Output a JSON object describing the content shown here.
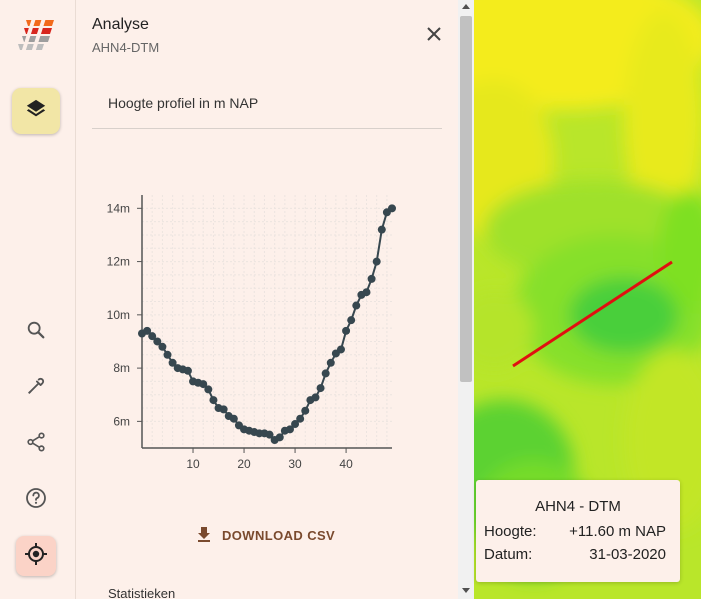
{
  "panel": {
    "title": "Analyse",
    "subtitle": "AHN4-DTM",
    "section_title": "Hoogte profiel in m NAP",
    "download_label": "DOWNLOAD CSV",
    "stats_label": "Statistieken"
  },
  "rail": {
    "icons": [
      "layers-icon",
      "search-icon",
      "measure-icon",
      "share-icon",
      "help-icon",
      "locate-icon"
    ]
  },
  "info_card": {
    "title": "AHN4 - DTM",
    "height_label": "Hoogte:",
    "height_value": "+11.60 m NAP",
    "date_label": "Datum:",
    "date_value": "31-03-2020"
  },
  "colors": {
    "accent": "#f2e6a6",
    "locate_bg": "#fbd3c7",
    "chart_line": "#37474f",
    "profile_line": "#e01010",
    "map_green": "#7ee024",
    "map_yellow": "#f6f01a"
  },
  "chart_data": {
    "type": "line",
    "title": "",
    "xlabel": "",
    "ylabel": "",
    "xlim": [
      0,
      49
    ],
    "ylim": [
      5,
      14.5
    ],
    "x_ticks": [
      "10",
      "20",
      "30",
      "40"
    ],
    "y_ticks": [
      "14m",
      "12m",
      "10m",
      "8m",
      "6m"
    ],
    "x_tick_values": [
      10,
      20,
      30,
      40
    ],
    "y_tick_values": [
      14,
      12,
      10,
      8,
      6
    ],
    "x": [
      0,
      1,
      2,
      3,
      4,
      5,
      6,
      7,
      8,
      9,
      10,
      11,
      12,
      13,
      14,
      15,
      16,
      17,
      18,
      19,
      20,
      21,
      22,
      23,
      24,
      25,
      26,
      27,
      28,
      29,
      30,
      31,
      32,
      33,
      34,
      35,
      36,
      37,
      38,
      39,
      40,
      41,
      42,
      43,
      44,
      45,
      46,
      47,
      48,
      49
    ],
    "values": [
      9.3,
      9.4,
      9.2,
      9.0,
      8.8,
      8.5,
      8.2,
      8.0,
      7.95,
      7.9,
      7.5,
      7.45,
      7.4,
      7.2,
      6.8,
      6.5,
      6.45,
      6.2,
      6.1,
      5.85,
      5.7,
      5.65,
      5.6,
      5.55,
      5.55,
      5.5,
      5.3,
      5.4,
      5.65,
      5.7,
      5.9,
      6.1,
      6.4,
      6.8,
      6.9,
      7.25,
      7.8,
      8.2,
      8.55,
      8.7,
      9.4,
      9.8,
      10.35,
      10.75,
      10.85,
      11.35,
      12.0,
      13.2,
      13.85,
      14.0
    ]
  }
}
